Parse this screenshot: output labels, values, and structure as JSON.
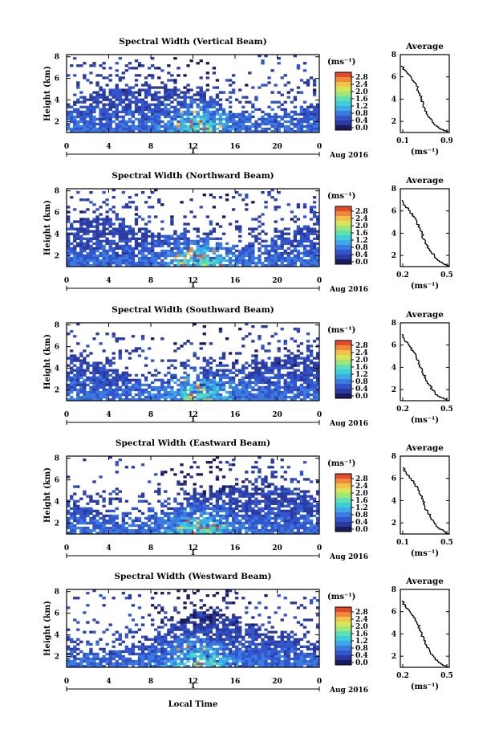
{
  "chart_data": [
    {
      "type": "heatmap",
      "title": "Spectral Width (Vertical Beam)",
      "ylabel": "Height (km)",
      "xticks": [
        "0",
        "4",
        "8",
        "12",
        "16",
        "20",
        "0"
      ],
      "yticks": [
        "2",
        "4",
        "6",
        "8"
      ],
      "date_tick": "1",
      "month_label": "Aug 2016",
      "colorbar": {
        "unit": "(ms⁻¹)",
        "ticks": [
          "0.0",
          "0.4",
          "0.8",
          "1.2",
          "1.6",
          "2.0",
          "2.4",
          "2.8"
        ]
      },
      "profile": {
        "title": "Average",
        "xlabel": "(ms⁻¹)",
        "xticks": [
          "0.1",
          "0.9"
        ],
        "xlim": [
          0.1,
          0.9
        ],
        "yticks": [
          "2",
          "4",
          "6",
          "8"
        ],
        "ylim": [
          1,
          8
        ],
        "heights": [
          1.0,
          1.5,
          2.0,
          2.5,
          3.0,
          3.5,
          4.0,
          4.5,
          5.0,
          5.5,
          6.0,
          6.5,
          7.0
        ],
        "values": [
          0.9,
          0.72,
          0.62,
          0.55,
          0.5,
          0.47,
          0.45,
          0.42,
          0.38,
          0.34,
          0.28,
          0.2,
          0.12
        ]
      }
    },
    {
      "type": "heatmap",
      "title": "Spectral Width (Northward Beam)",
      "ylabel": "Height (km)",
      "xticks": [
        "0",
        "4",
        "8",
        "12",
        "16",
        "20",
        "0"
      ],
      "yticks": [
        "2",
        "4",
        "6",
        "8"
      ],
      "date_tick": "1",
      "month_label": "Aug 2016",
      "colorbar": {
        "unit": "(ms⁻¹)",
        "ticks": [
          "0.0",
          "0.4",
          "0.8",
          "1.2",
          "1.6",
          "2.0",
          "2.4",
          "2.8"
        ]
      },
      "profile": {
        "title": "Average",
        "xlabel": "(ms⁻¹)",
        "xticks": [
          "0.2",
          "0.5"
        ],
        "xlim": [
          0.1,
          0.6
        ],
        "yticks": [
          "2",
          "4",
          "6",
          "8"
        ],
        "ylim": [
          1,
          8
        ],
        "heights": [
          1.0,
          1.5,
          2.0,
          2.5,
          3.0,
          3.5,
          4.0,
          4.5,
          5.0,
          5.5,
          6.0,
          6.5,
          7.0
        ],
        "values": [
          0.6,
          0.5,
          0.45,
          0.4,
          0.37,
          0.34,
          0.32,
          0.3,
          0.27,
          0.24,
          0.2,
          0.15,
          0.12
        ]
      }
    },
    {
      "type": "heatmap",
      "title": "Spectral Width (Southward Beam)",
      "ylabel": "Height (km)",
      "xticks": [
        "0",
        "4",
        "8",
        "12",
        "16",
        "20",
        "0"
      ],
      "yticks": [
        "2",
        "4",
        "6",
        "8"
      ],
      "date_tick": "1",
      "month_label": "Aug 2016",
      "colorbar": {
        "unit": "(ms⁻¹)",
        "ticks": [
          "0.0",
          "0.4",
          "0.8",
          "1.2",
          "1.6",
          "2.0",
          "2.4",
          "2.8"
        ]
      },
      "profile": {
        "title": "Average",
        "xlabel": "(ms⁻¹)",
        "xticks": [
          "0.2",
          "0.5"
        ],
        "xlim": [
          0.1,
          0.6
        ],
        "yticks": [
          "2",
          "4",
          "6",
          "8"
        ],
        "ylim": [
          1,
          8
        ],
        "heights": [
          1.0,
          1.5,
          2.0,
          2.5,
          3.0,
          3.5,
          4.0,
          4.5,
          5.0,
          5.5,
          6.0,
          6.5,
          7.0
        ],
        "values": [
          0.6,
          0.48,
          0.43,
          0.39,
          0.36,
          0.33,
          0.31,
          0.29,
          0.26,
          0.23,
          0.19,
          0.14,
          0.12
        ]
      }
    },
    {
      "type": "heatmap",
      "title": "Spectral Width (Eastward Beam)",
      "ylabel": "Height (km)",
      "xticks": [
        "0",
        "4",
        "8",
        "12",
        "16",
        "20",
        "0"
      ],
      "yticks": [
        "2",
        "4",
        "6",
        "8"
      ],
      "date_tick": "1",
      "month_label": "Aug 2016",
      "colorbar": {
        "unit": "(ms⁻¹)",
        "ticks": [
          "0.0",
          "0.4",
          "0.8",
          "1.2",
          "1.6",
          "2.0",
          "2.4",
          "2.8"
        ]
      },
      "profile": {
        "title": "Average",
        "xlabel": "(ms⁻¹)",
        "xticks": [
          "0.1",
          "0.5"
        ],
        "xlim": [
          0.05,
          0.55
        ],
        "yticks": [
          "2",
          "4",
          "6",
          "8"
        ],
        "ylim": [
          1,
          8
        ],
        "heights": [
          1.0,
          1.5,
          2.0,
          2.5,
          3.0,
          3.5,
          4.0,
          4.5,
          5.0,
          5.5,
          6.0,
          6.5,
          7.0
        ],
        "values": [
          0.55,
          0.45,
          0.4,
          0.36,
          0.33,
          0.3,
          0.28,
          0.26,
          0.23,
          0.2,
          0.16,
          0.11,
          0.08
        ]
      }
    },
    {
      "type": "heatmap",
      "title": "Spectral Width (Westward Beam)",
      "ylabel": "Height (km)",
      "xticks": [
        "0",
        "4",
        "8",
        "12",
        "16",
        "20",
        "0"
      ],
      "yticks": [
        "2",
        "4",
        "6",
        "8"
      ],
      "date_tick": "1",
      "month_label": "Aug 2016",
      "xlabel": "Local Time",
      "colorbar": {
        "unit": "(ms⁻¹)",
        "ticks": [
          "0.0",
          "0.4",
          "0.8",
          "1.2",
          "1.6",
          "2.0",
          "2.4",
          "2.8"
        ]
      },
      "profile": {
        "title": "Average",
        "xlabel": "(ms⁻¹)",
        "xticks": [
          "0.2",
          "0.5"
        ],
        "xlim": [
          0.1,
          0.6
        ],
        "yticks": [
          "2",
          "4",
          "6",
          "8"
        ],
        "ylim": [
          1,
          8
        ],
        "heights": [
          1.0,
          1.5,
          2.0,
          2.5,
          3.0,
          3.5,
          4.0,
          4.5,
          5.0,
          5.5,
          6.0,
          6.5,
          7.0
        ],
        "values": [
          0.6,
          0.49,
          0.44,
          0.4,
          0.37,
          0.34,
          0.32,
          0.3,
          0.27,
          0.24,
          0.2,
          0.15,
          0.12
        ]
      }
    }
  ]
}
